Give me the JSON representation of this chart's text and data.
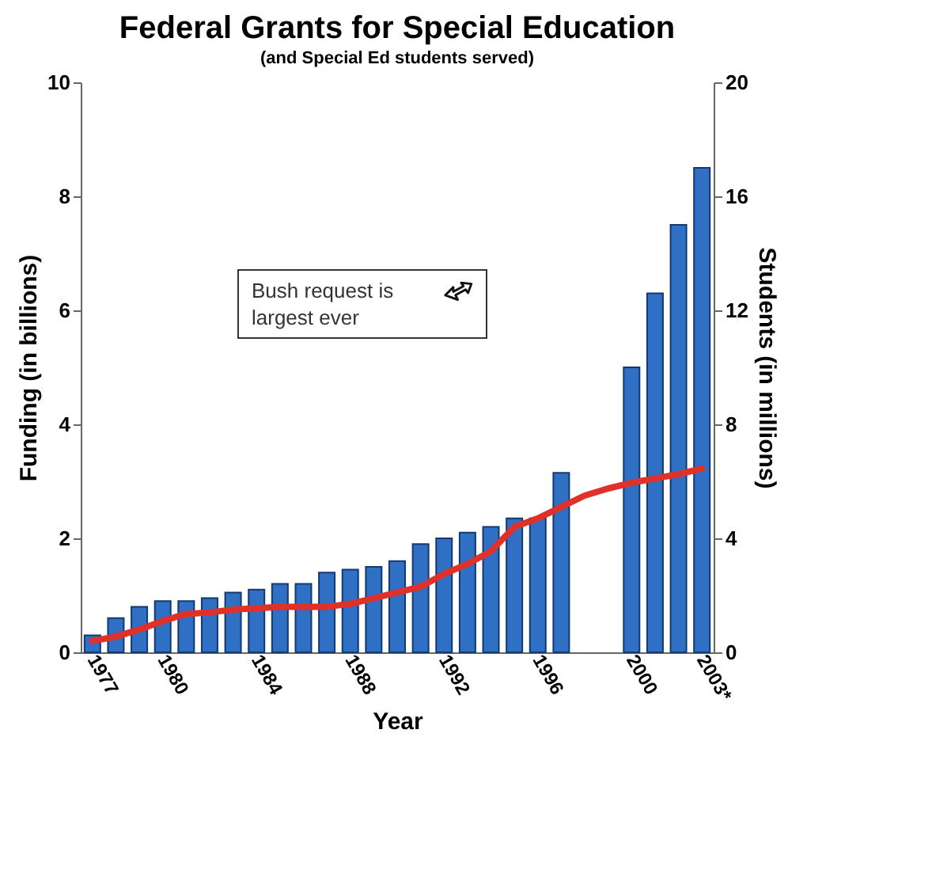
{
  "chart_data": {
    "type": "bar",
    "title": "Federal Grants for Special Education",
    "subtitle": "(and Special Ed students served)",
    "xlabel": "Year",
    "ylabel": "Funding (in billions)",
    "y2label": "Students (in millions)",
    "categories": [
      "1977",
      null,
      null,
      "1980",
      null,
      null,
      null,
      "1984",
      null,
      null,
      null,
      "1988",
      null,
      null,
      null,
      "1992",
      null,
      null,
      null,
      "1996",
      null,
      null,
      null,
      "2000",
      null,
      null,
      "2003*"
    ],
    "series": [
      {
        "color": "#2f6fc4",
        "values": [
          0.3,
          0.6,
          0.8,
          0.9,
          0.9,
          0.95,
          1.05,
          1.1,
          1.2,
          1.2,
          1.4,
          1.45,
          1.5,
          1.6,
          1.9,
          2.0,
          2.1,
          2.2,
          2.35,
          2.35,
          3.15,
          null,
          null,
          5.0,
          6.3,
          7.5,
          8.5
        ]
      },
      {
        "type": "line",
        "axis": "y2",
        "color": "#e0302a",
        "values": [
          0.4,
          0.55,
          0.8,
          1.1,
          1.35,
          1.4,
          1.5,
          1.55,
          1.6,
          1.6,
          1.6,
          1.7,
          1.9,
          2.1,
          2.3,
          2.75,
          3.1,
          3.55,
          4.4,
          4.7,
          5.1,
          5.5,
          5.75,
          5.95,
          6.1,
          6.25,
          6.45
        ]
      }
    ],
    "ylim": [
      0,
      10
    ],
    "yticks": [
      0,
      2,
      4,
      6,
      8,
      10
    ],
    "y2lim": [
      0,
      20
    ],
    "y2ticks": [
      0,
      4,
      8,
      12,
      16,
      20
    ],
    "grid": false,
    "annotations": [
      "Bush request is largest ever"
    ]
  }
}
